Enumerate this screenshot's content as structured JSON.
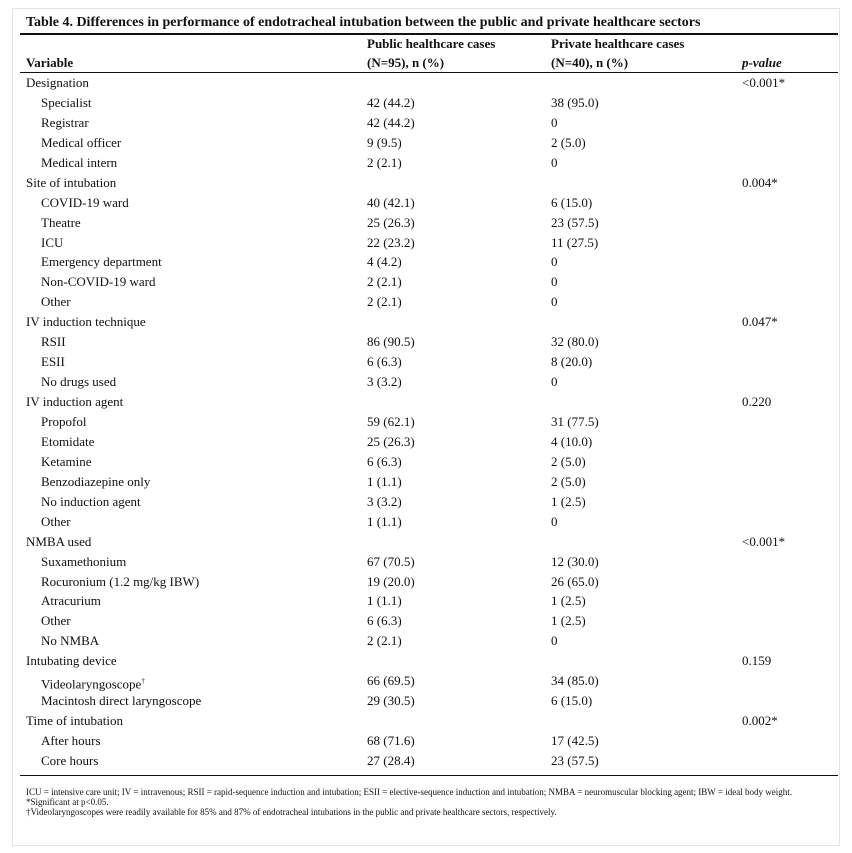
{
  "title": "Table 4. Differences in performance of endotracheal intubation between the public and private healthcare sectors",
  "header": {
    "variable": "Variable",
    "public_line1": "Public healthcare cases",
    "public_line2": "(N=95), n (%)",
    "private_line1": "Private healthcare cases",
    "private_line2": "(N=40), n (%)",
    "p_value": "p-value"
  },
  "groups": [
    {
      "label": "Designation",
      "p_value": "<0.001*",
      "items": [
        {
          "label": "Specialist",
          "public": "42 (44.2)",
          "private": "38 (95.0)"
        },
        {
          "label": "Registrar",
          "public": "42 (44.2)",
          "private": "0"
        },
        {
          "label": "Medical officer",
          "public": "9 (9.5)",
          "private": "2 (5.0)"
        },
        {
          "label": "Medical intern",
          "public": "2 (2.1)",
          "private": "0"
        }
      ]
    },
    {
      "label": "Site of intubation",
      "p_value": "0.004*",
      "items": [
        {
          "label": "COVID-19 ward",
          "public": "40 (42.1)",
          "private": "6 (15.0)"
        },
        {
          "label": "Theatre",
          "public": "25 (26.3)",
          "private": "23 (57.5)"
        },
        {
          "label": "ICU",
          "public": "22 (23.2)",
          "private": "11 (27.5)"
        },
        {
          "label": "Emergency department",
          "public": "4 (4.2)",
          "private": "0"
        },
        {
          "label": "Non-COVID-19 ward",
          "public": "2 (2.1)",
          "private": "0"
        },
        {
          "label": "Other",
          "public": "2 (2.1)",
          "private": "0"
        }
      ]
    },
    {
      "label": "IV induction technique",
      "p_value": "0.047*",
      "items": [
        {
          "label": "RSII",
          "public": "86 (90.5)",
          "private": "32 (80.0)"
        },
        {
          "label": "ESII",
          "public": "6 (6.3)",
          "private": "8 (20.0)"
        },
        {
          "label": "No drugs used",
          "public": "3 (3.2)",
          "private": "0"
        }
      ]
    },
    {
      "label": "IV induction agent",
      "p_value": "0.220",
      "items": [
        {
          "label": "Propofol",
          "public": "59 (62.1)",
          "private": "31 (77.5)"
        },
        {
          "label": "Etomidate",
          "public": "25 (26.3)",
          "private": "4 (10.0)"
        },
        {
          "label": "Ketamine",
          "public": "6 (6.3)",
          "private": "2 (5.0)"
        },
        {
          "label": "Benzodiazepine only",
          "public": "1 (1.1)",
          "private": "2 (5.0)"
        },
        {
          "label": "No induction agent",
          "public": "3 (3.2)",
          "private": "1 (2.5)"
        },
        {
          "label": "Other",
          "public": "1 (1.1)",
          "private": "0"
        }
      ]
    },
    {
      "label": "NMBA used",
      "p_value": "<0.001*",
      "items": [
        {
          "label": "Suxamethonium",
          "public": "67 (70.5)",
          "private": "12 (30.0)"
        },
        {
          "label": "Rocuronium (1.2 mg/kg IBW)",
          "public": "19 (20.0)",
          "private": "26 (65.0)"
        },
        {
          "label": "Atracurium",
          "public": "1 (1.1)",
          "private": "1 (2.5)"
        },
        {
          "label": "Other",
          "public": "6 (6.3)",
          "private": "1 (2.5)"
        },
        {
          "label": "No NMBA",
          "public": "2 (2.1)",
          "private": "0"
        }
      ]
    },
    {
      "label": "Intubating device",
      "p_value": "0.159",
      "items": [
        {
          "label": "Videolaryngoscope",
          "note_mark": "†",
          "public": "66 (69.5)",
          "private": "34 (85.0)"
        },
        {
          "label": "Macintosh direct laryngoscope",
          "public": "29 (30.5)",
          "private": "6 (15.0)"
        }
      ]
    },
    {
      "label": "Time of intubation",
      "p_value": "0.002*",
      "items": [
        {
          "label": "After hours",
          "public": "68 (71.6)",
          "private": "17 (42.5)"
        },
        {
          "label": "Core hours",
          "public": "27 (28.4)",
          "private": "23 (57.5)"
        }
      ]
    }
  ],
  "footnotes": [
    "ICU = intensive care unit; IV = intravenous; RSII = rapid-sequence induction and intubation; ESII = elective-sequence induction and intubation; NMBA = neuromuscular blocking agent; IBW = ideal body weight.",
    "*Significant at p<0.05.",
    "†Videolaryngoscopes were readily available for 85% and 87% of endotracheal intubations in the public and private healthcare sectors, respectively."
  ]
}
